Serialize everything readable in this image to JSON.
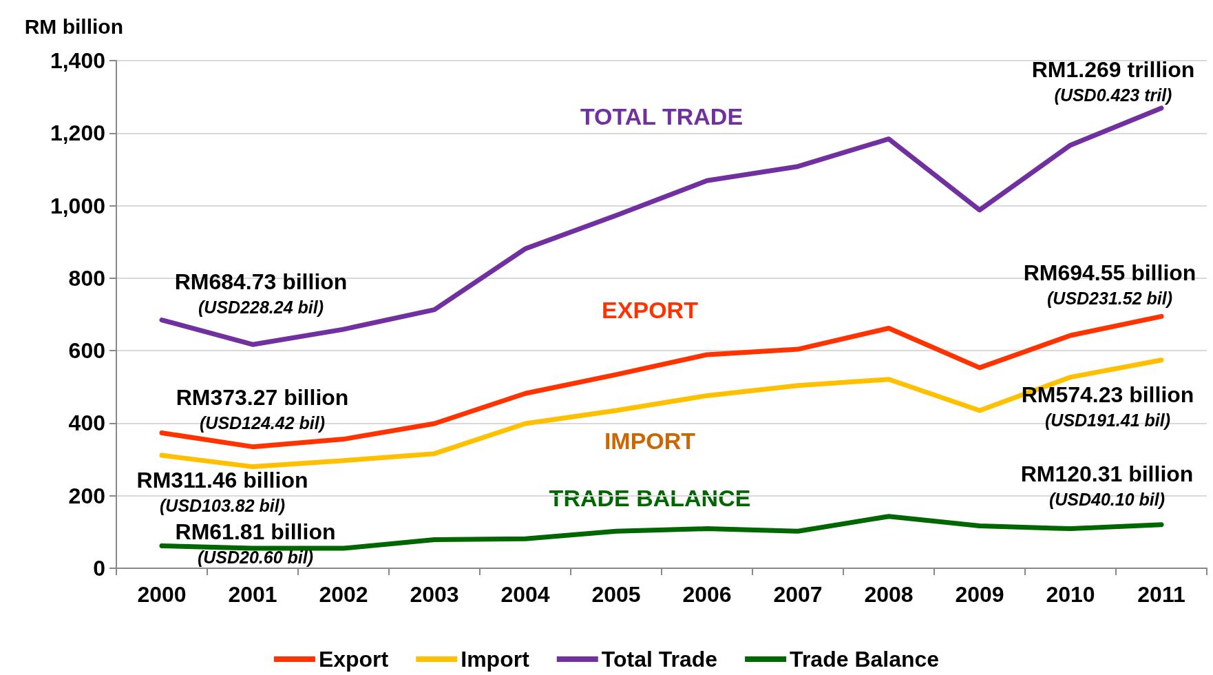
{
  "chart_data": {
    "type": "line",
    "ylabel": "RM billion",
    "categories": [
      "2000",
      "2001",
      "2002",
      "2003",
      "2004",
      "2005",
      "2006",
      "2007",
      "2008",
      "2009",
      "2010",
      "2011"
    ],
    "series": [
      {
        "name": "Export",
        "color": "#ff3300",
        "values": [
          373.27,
          335,
          356,
          399,
          482,
          534,
          589,
          604,
          662,
          553,
          642,
          694.55
        ],
        "value_labels": [
          "RM373.27 billion\n(USD124.42 bil)",
          null,
          null,
          null,
          null,
          null,
          null,
          null,
          null,
          null,
          null,
          "RM694.55 billion\n(USD231.52 bil)"
        ]
      },
      {
        "name": "Import",
        "color": "#ffc000",
        "values": [
          311.46,
          280,
          297,
          316,
          399,
          435,
          476,
          504,
          521,
          435,
          527,
          574.23
        ],
        "value_labels": [
          "RM311.46 billion\n(USD103.82 bil)",
          null,
          null,
          null,
          null,
          null,
          null,
          null,
          null,
          null,
          null,
          "RM574.23 billion\n(USD191.41 bil)"
        ]
      },
      {
        "name": "Total Trade",
        "color": "#7030a0",
        "values": [
          684.73,
          617,
          659,
          713,
          881,
          973,
          1069,
          1108,
          1184,
          988,
          1167,
          1269
        ],
        "value_labels": [
          "RM684.73 billion\n(USD228.24 bil)",
          null,
          null,
          null,
          null,
          null,
          null,
          null,
          null,
          null,
          null,
          "RM1.269 trillion\n(USD0.423 tril)"
        ]
      },
      {
        "name": "Trade Balance",
        "color": "#006600",
        "values": [
          61.81,
          55,
          55,
          79,
          81,
          102,
          109,
          102,
          143,
          117,
          109,
          120.31
        ],
        "value_labels": [
          "RM61.81 billion\n(USD20.60 bil)",
          null,
          null,
          null,
          null,
          null,
          null,
          null,
          null,
          null,
          null,
          "RM120.31 billion\n(USD40.10 bil)"
        ]
      }
    ],
    "ylim": [
      0,
      1400
    ],
    "yticks": [
      0,
      200,
      400,
      600,
      800,
      {
        "value": 1000,
        "label": "1,000"
      },
      {
        "value": 1200,
        "label": "1,200"
      },
      {
        "value": 1400,
        "label": "1,400"
      }
    ],
    "grid": "y",
    "legend": "bottom",
    "marker": "none",
    "line_style": "solid",
    "annotations": [
      "TOTAL TRADE",
      "EXPORT",
      "IMPORT",
      "TRADE BALANCE"
    ]
  }
}
